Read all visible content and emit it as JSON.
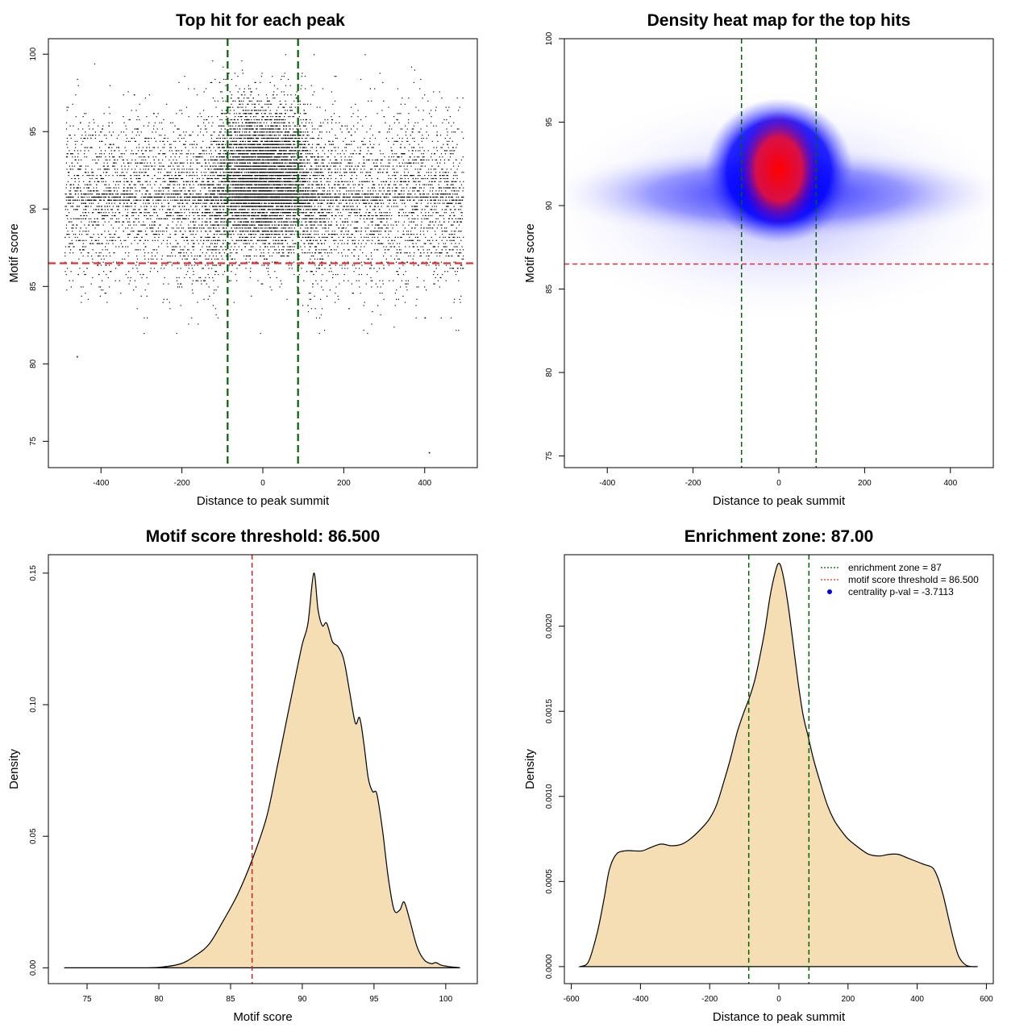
{
  "chart_data": [
    {
      "type": "scatter",
      "title": "Top hit for each peak",
      "xlabel": "Distance to peak summit",
      "ylabel": "Motif score",
      "xlim": [
        -530,
        530
      ],
      "ylim": [
        73.3,
        101.0
      ],
      "xticks": [
        -400,
        -200,
        0,
        200,
        400
      ],
      "yticks": [
        75,
        80,
        85,
        90,
        95,
        100
      ],
      "point_count_estimate": 12000,
      "x_range_points": [
        -490,
        495
      ],
      "outliers": [
        {
          "x": -460,
          "y": 80.5
        },
        {
          "x": 410,
          "y": 74.3
        }
      ],
      "lines": [
        {
          "orientation": "horizontal",
          "value": 86.5,
          "color": "#e03030",
          "style": "dashed"
        },
        {
          "orientation": "vertical",
          "value": -87,
          "color": "#006400",
          "style": "dashed"
        },
        {
          "orientation": "vertical",
          "value": 87,
          "color": "#006400",
          "style": "dashed"
        }
      ]
    },
    {
      "type": "heatmap",
      "title": "Density heat map for the top hits",
      "xlabel": "Distance to peak summit",
      "ylabel": "Motif score",
      "xlim": [
        -500,
        500
      ],
      "ylim": [
        74.3,
        100.0
      ],
      "xticks": [
        -400,
        -200,
        0,
        200,
        400
      ],
      "yticks": [
        75,
        80,
        85,
        90,
        95,
        100
      ],
      "colors": [
        "#ffffff",
        "#0000ff",
        "#ff0000"
      ],
      "hotspot": {
        "x": 0,
        "y": 91.5
      },
      "lines": [
        {
          "orientation": "horizontal",
          "value": 86.5,
          "color": "#e03030",
          "style": "dashed"
        },
        {
          "orientation": "vertical",
          "value": -87,
          "color": "#006400",
          "style": "dashed"
        },
        {
          "orientation": "vertical",
          "value": 87,
          "color": "#006400",
          "style": "dashed"
        }
      ]
    },
    {
      "type": "area",
      "title": "Motif score threshold: 86.500",
      "xlabel": "Motif score",
      "ylabel": "Density",
      "xlim": [
        72.3,
        102.2
      ],
      "ylim": [
        -0.006,
        0.157
      ],
      "xticks": [
        75,
        80,
        85,
        90,
        95,
        100
      ],
      "yticks": [
        0.0,
        0.05,
        0.1,
        0.15
      ],
      "ytick_labels": [
        "0.00",
        "0.05",
        "0.10",
        "0.15"
      ],
      "fill": "#f5deb3",
      "x": [
        73.4,
        78,
        80,
        81.5,
        82.5,
        83.5,
        84.5,
        85.5,
        86.5,
        87.5,
        88.2,
        88.9,
        89.5,
        90.0,
        90.4,
        90.8,
        91.1,
        91.4,
        91.7,
        92.1,
        92.5,
        92.9,
        93.3,
        93.7,
        94.0,
        94.3,
        94.6,
        94.9,
        95.2,
        95.6,
        96.0,
        96.4,
        96.8,
        97.1,
        97.5,
        98.0,
        98.5,
        99.0,
        99.3,
        99.7,
        100.2,
        101.0
      ],
      "values": [
        0.0,
        0.0,
        0.0002,
        0.0015,
        0.0045,
        0.009,
        0.018,
        0.028,
        0.041,
        0.057,
        0.075,
        0.094,
        0.11,
        0.123,
        0.131,
        0.15,
        0.136,
        0.13,
        0.131,
        0.124,
        0.122,
        0.117,
        0.105,
        0.093,
        0.095,
        0.085,
        0.072,
        0.067,
        0.066,
        0.052,
        0.034,
        0.022,
        0.022,
        0.025,
        0.018,
        0.008,
        0.003,
        0.0016,
        0.002,
        0.001,
        0.0005,
        0.0
      ],
      "lines": [
        {
          "orientation": "vertical",
          "value": 86.5,
          "color": "#d02020",
          "style": "dashed"
        }
      ]
    },
    {
      "type": "area",
      "title": "Enrichment zone: 87.00",
      "xlabel": "Distance to peak summit",
      "ylabel": "Density",
      "xlim": [
        -620,
        620
      ],
      "ylim": [
        -0.0001,
        0.00242
      ],
      "xticks": [
        -600,
        -400,
        -200,
        0,
        200,
        400,
        600
      ],
      "yticks": [
        0.0,
        0.0005,
        0.001,
        0.0015,
        0.002
      ],
      "ytick_labels": [
        "0.0000",
        "0.0005",
        "0.0010",
        "0.0015",
        "0.0020"
      ],
      "fill": "#f5deb3",
      "x": [
        -575,
        -550,
        -525,
        -505,
        -490,
        -470,
        -445,
        -420,
        -395,
        -370,
        -340,
        -310,
        -280,
        -250,
        -220,
        -200,
        -180,
        -160,
        -140,
        -120,
        -100,
        -85,
        -70,
        -55,
        -40,
        -25,
        -10,
        0,
        10,
        25,
        40,
        55,
        70,
        85,
        100,
        120,
        140,
        160,
        180,
        200,
        230,
        260,
        290,
        320,
        345,
        370,
        395,
        420,
        445,
        460,
        475,
        490,
        505,
        520,
        540,
        560,
        575
      ],
      "values": [
        0.0,
        3e-05,
        0.0002,
        0.0004,
        0.00057,
        0.00066,
        0.00068,
        0.00068,
        0.00068,
        0.0007,
        0.00072,
        0.00071,
        0.00072,
        0.00076,
        0.00082,
        0.00087,
        0.00095,
        0.00108,
        0.00122,
        0.00138,
        0.0015,
        0.00158,
        0.00168,
        0.00182,
        0.00198,
        0.00218,
        0.00232,
        0.00237,
        0.00232,
        0.00215,
        0.00192,
        0.00168,
        0.00148,
        0.00135,
        0.00122,
        0.00108,
        0.00095,
        0.00086,
        0.0008,
        0.00075,
        0.0007,
        0.00066,
        0.00065,
        0.00066,
        0.00066,
        0.00064,
        0.00062,
        0.0006,
        0.00058,
        0.00052,
        0.00042,
        0.00029,
        0.00016,
        6e-05,
        1e-05,
        0.0,
        0.0
      ],
      "lines": [
        {
          "orientation": "vertical",
          "value": -87,
          "color": "#006400",
          "style": "dashed"
        },
        {
          "orientation": "vertical",
          "value": 87,
          "color": "#006400",
          "style": "dashed"
        }
      ],
      "legend": {
        "position": "top-right",
        "entries": [
          {
            "label": "enrichment zone = 87",
            "color": "#006400",
            "kind": "dotted-line"
          },
          {
            "label": "motif score threshold = 86.500",
            "color": "#e03030",
            "kind": "dotted-line"
          },
          {
            "label": "centrality p-val = -3.7113",
            "color": "#0000ff",
            "kind": "point"
          }
        ]
      }
    }
  ]
}
